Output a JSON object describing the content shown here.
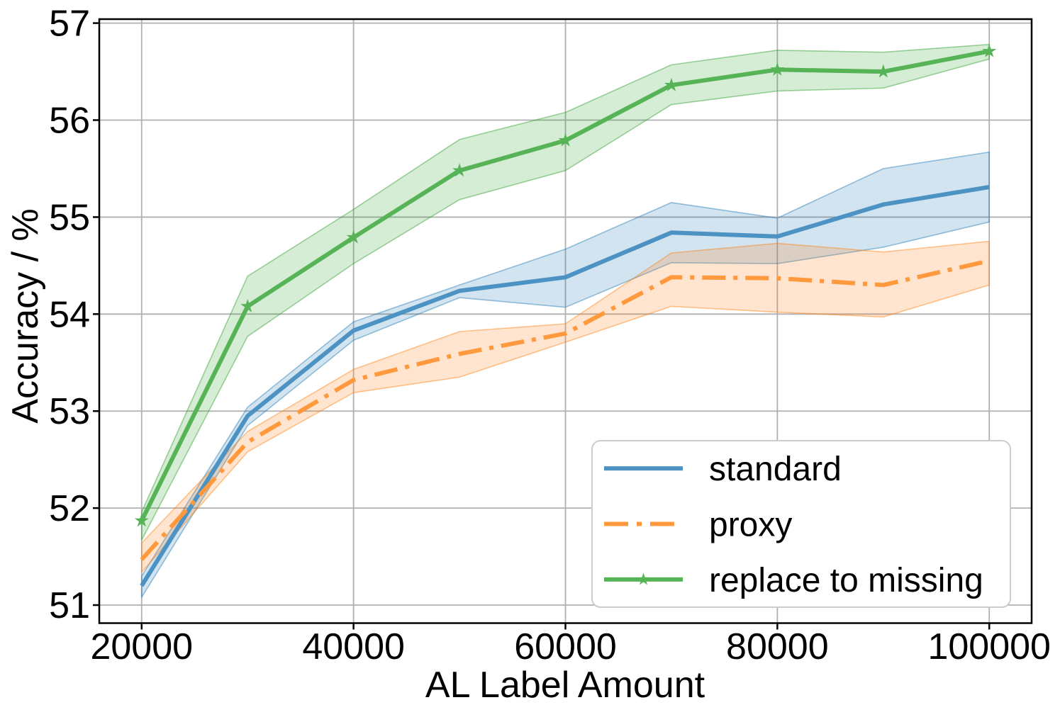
{
  "figure": {
    "background": "#ffffff",
    "grid_color": "#b0b0b0",
    "spine_color": "#000000",
    "legend_border_color": "#cccccc"
  },
  "chart_data": {
    "type": "line",
    "title": "",
    "xlabel": "AL Label Amount",
    "ylabel": "Accuracy / %",
    "xlim": [
      16000,
      104000
    ],
    "ylim": [
      50.814,
      57.041
    ],
    "grid": true,
    "legend_position": "lower right",
    "x": [
      20000,
      30000,
      40000,
      50000,
      60000,
      70000,
      80000,
      90000,
      100000
    ],
    "xticks": [
      20000,
      40000,
      60000,
      80000,
      100000
    ],
    "xtick_labels": [
      "20000",
      "40000",
      "60000",
      "80000",
      "100000"
    ],
    "yticks": [
      51,
      52,
      53,
      54,
      55,
      56,
      57
    ],
    "ytick_labels": [
      "51",
      "52",
      "53",
      "54",
      "55",
      "56",
      "57"
    ],
    "series": [
      {
        "name": "standard",
        "color": "#4C92C3",
        "band_color": "#1f77b4",
        "linestyle": "solid",
        "marker": "none",
        "values": [
          51.2,
          52.95,
          53.83,
          54.24,
          54.38,
          54.84,
          54.8,
          55.13,
          55.31
        ],
        "band_lower": [
          51.08,
          52.85,
          53.73,
          54.17,
          54.07,
          54.53,
          54.52,
          54.69,
          54.95
        ],
        "band_upper": [
          51.3,
          53.04,
          53.92,
          54.3,
          54.67,
          55.15,
          54.99,
          55.5,
          55.67
        ]
      },
      {
        "name": "proxy",
        "color": "#FF993E",
        "band_color": "#ff7f0e",
        "linestyle": "dashdot",
        "marker": "none",
        "values": [
          51.47,
          52.68,
          53.32,
          53.59,
          53.8,
          54.38,
          54.37,
          54.3,
          54.55
        ],
        "band_lower": [
          51.34,
          52.58,
          53.19,
          53.35,
          53.71,
          54.08,
          54.02,
          53.97,
          54.3
        ],
        "band_upper": [
          51.64,
          52.79,
          53.43,
          53.82,
          53.9,
          54.63,
          54.73,
          54.64,
          54.75
        ]
      },
      {
        "name": "replace to missing",
        "color": "#56B356",
        "band_color": "#2ca02c",
        "linestyle": "solid",
        "marker": "star",
        "values": [
          51.87,
          54.08,
          54.79,
          55.48,
          55.79,
          56.36,
          56.52,
          56.5,
          56.71
        ],
        "band_lower": [
          51.67,
          53.77,
          54.52,
          55.18,
          55.48,
          56.16,
          56.3,
          56.33,
          56.63
        ],
        "band_upper": [
          51.96,
          54.39,
          55.08,
          55.8,
          56.08,
          56.57,
          56.72,
          56.7,
          56.78
        ]
      }
    ]
  }
}
